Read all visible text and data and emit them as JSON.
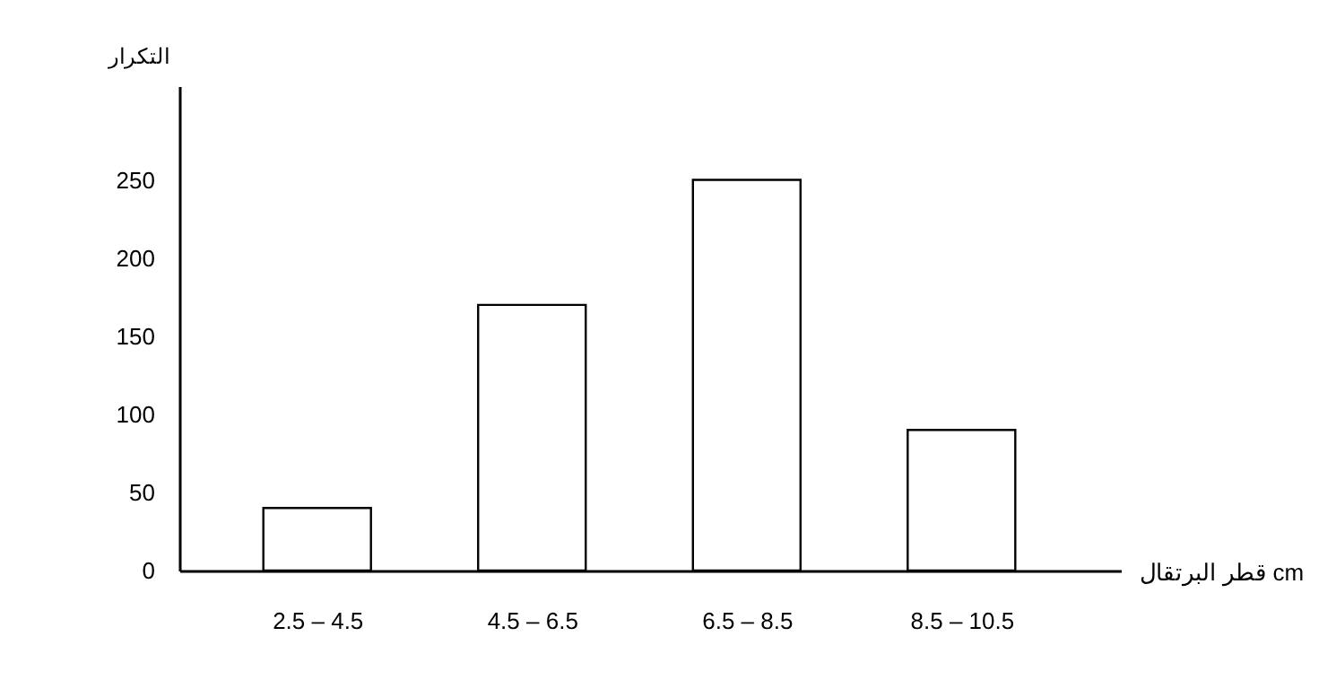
{
  "chart_data": {
    "type": "bar",
    "xlabel": "قطر البرتقال cm",
    "ylabel": "التكرار",
    "categories": [
      "2.5 – 4.5",
      "4.5 – 6.5",
      "6.5 – 8.5",
      "8.5 – 10.5"
    ],
    "values": [
      40,
      170,
      250,
      90
    ],
    "color": "#ffffff",
    "ylim": [
      0,
      310
    ],
    "yticks": [
      0,
      50,
      100,
      150,
      200,
      250
    ],
    "grid": false
  }
}
